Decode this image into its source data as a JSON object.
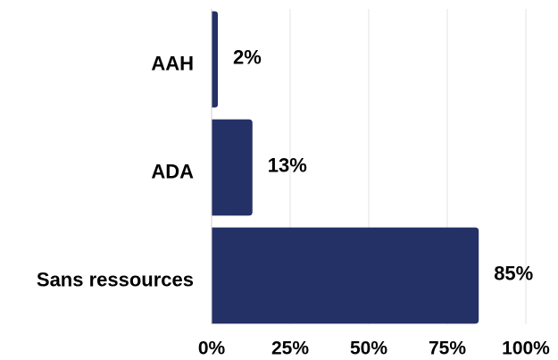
{
  "chart_data": {
    "type": "barh",
    "categories": [
      "AAH",
      "ADA",
      "Sans ressources"
    ],
    "values": [
      2,
      13,
      85
    ],
    "value_labels": [
      "2%",
      "13%",
      "85%"
    ],
    "color": "#243166",
    "xlim": [
      0,
      100
    ],
    "xticks": [
      {
        "value": 0,
        "label": "0%"
      },
      {
        "value": 25,
        "label": "25%"
      },
      {
        "value": 50,
        "label": "50%"
      },
      {
        "value": 75,
        "label": "75%"
      },
      {
        "value": 100,
        "label": "100%"
      }
    ],
    "grid": true
  }
}
